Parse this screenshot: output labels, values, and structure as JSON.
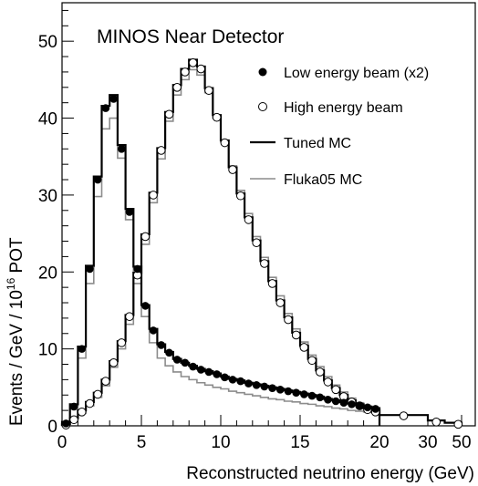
{
  "chart_data": {
    "type": "line",
    "annotation": "MINOS Near Detector",
    "xlabel": "Reconstructed neutrino energy (GeV)",
    "ylabel_main": "Events / GeV / 10",
    "ylabel_exp": "16",
    "ylabel_suffix": " POT",
    "xlim": [
      0,
      50
    ],
    "ylim": [
      0,
      55
    ],
    "x_scale": "linear from 0 to 20 GeV, compressed between 20 and 50 GeV",
    "grid": false,
    "legend_placement": "top-right",
    "x_ticks": [
      "0",
      "5",
      "10",
      "15",
      "20",
      "30",
      "50"
    ],
    "y_ticks": [
      "0",
      "10",
      "20",
      "30",
      "40",
      "50"
    ],
    "series": [
      {
        "name": "Low energy beam (x2)",
        "style": "filled circles",
        "color": "#000000",
        "x": [
          0.25,
          0.75,
          1.25,
          1.75,
          2.25,
          2.75,
          3.25,
          3.75,
          4.25,
          4.75,
          5.25,
          5.75,
          6.25,
          6.75,
          7.25,
          7.75,
          8.25,
          8.75,
          9.25,
          9.75,
          10.25,
          10.75,
          11.25,
          11.75,
          12.25,
          12.75,
          13.25,
          13.75,
          14.25,
          14.75,
          15.25,
          15.75,
          16.25,
          16.75,
          17.25,
          17.75,
          18.25,
          18.75,
          19.25,
          19.75
        ],
        "y": [
          0.3,
          2.5,
          10.0,
          20.4,
          32.0,
          41.3,
          42.5,
          36.0,
          27.8,
          20.4,
          15.6,
          12.4,
          10.5,
          9.5,
          8.6,
          8.2,
          7.7,
          7.3,
          7.0,
          6.7,
          6.3,
          6.0,
          5.8,
          5.5,
          5.3,
          5.1,
          4.9,
          4.7,
          4.5,
          4.3,
          4.1,
          3.9,
          3.7,
          3.4,
          3.2,
          3.0,
          2.8,
          2.6,
          2.4,
          2.2
        ]
      },
      {
        "name": "High energy beam",
        "style": "open circles",
        "color": "#000000",
        "x": [
          0.25,
          0.75,
          1.25,
          1.75,
          2.25,
          2.75,
          3.25,
          3.75,
          4.25,
          4.75,
          5.25,
          5.75,
          6.25,
          6.75,
          7.25,
          7.75,
          8.25,
          8.75,
          9.25,
          9.75,
          10.25,
          10.75,
          11.25,
          11.75,
          12.25,
          12.75,
          13.25,
          13.75,
          14.25,
          14.75,
          15.25,
          15.75,
          16.25,
          16.75,
          17.25,
          17.75,
          18.25,
          18.75,
          19.25,
          19.75,
          25,
          35,
          48
        ],
        "y": [
          0.1,
          0.8,
          1.8,
          2.9,
          4.1,
          5.8,
          8.2,
          10.8,
          14.2,
          19.6,
          24.6,
          30.0,
          35.8,
          40.5,
          44.0,
          46.0,
          47.2,
          46.4,
          43.6,
          40.1,
          36.8,
          33.3,
          29.9,
          26.8,
          23.8,
          21.1,
          18.5,
          16.0,
          13.8,
          11.8,
          10.2,
          8.5,
          7.0,
          5.7,
          4.7,
          3.8,
          3.1,
          2.6,
          2.1,
          1.8,
          1.3,
          0.5,
          0.2
        ]
      },
      {
        "name": "Tuned MC",
        "style": "black step line",
        "color": "#000000",
        "edges": [
          0,
          0.5,
          1,
          1.5,
          2,
          2.5,
          3,
          3.5,
          4,
          4.5,
          5,
          5.5,
          6,
          6.5,
          7,
          7.5,
          8,
          8.5,
          9,
          9.5,
          10,
          10.5,
          11,
          11.5,
          12,
          12.5,
          13,
          13.5,
          14,
          14.5,
          15,
          15.5,
          16,
          16.5,
          17,
          17.5,
          18,
          18.5,
          19,
          19.5,
          20
        ],
        "curves": [
          {
            "beam": "low energy",
            "values": [
              0.5,
              2.8,
              10.3,
              20.8,
              32.4,
              41.6,
              43.0,
              36.5,
              28.2,
              20.7,
              15.7,
              12.6,
              10.6,
              9.6,
              8.7,
              8.2,
              7.8,
              7.4,
              7.1,
              6.8,
              6.4,
              6.1,
              5.9,
              5.6,
              5.4,
              5.2,
              5.0,
              4.8,
              4.6,
              4.4,
              4.2,
              4.0,
              3.8,
              3.5,
              3.3,
              3.1,
              2.9,
              2.7,
              2.5,
              2.3
            ]
          },
          {
            "beam": "high energy",
            "values": [
              0.2,
              1.0,
              2.0,
              3.1,
              4.3,
              6.0,
              8.4,
              11.0,
              14.4,
              19.9,
              24.9,
              30.3,
              36.1,
              40.8,
              44.3,
              46.4,
              47.6,
              46.7,
              43.9,
              40.4,
              37.1,
              33.6,
              30.2,
              27.1,
              24.1,
              21.4,
              18.8,
              16.3,
              14.1,
              12.1,
              10.4,
              8.7,
              7.2,
              5.9,
              4.9,
              4.0,
              3.3,
              2.8,
              2.3,
              2.0
            ],
            "tail_x": [
              20,
              30,
              40,
              50
            ],
            "tail_values": [
              1.4,
              0.7,
              0.4
            ]
          }
        ]
      },
      {
        "name": "Fluka05 MC",
        "style": "gray step line",
        "color": "#8c8c8c",
        "edges": [
          0,
          0.5,
          1,
          1.5,
          2,
          2.5,
          3,
          3.5,
          4,
          4.5,
          5,
          5.5,
          6,
          6.5,
          7,
          7.5,
          8,
          8.5,
          9,
          9.5,
          10,
          10.5,
          11,
          11.5,
          12,
          12.5,
          13,
          13.5,
          14,
          14.5,
          15,
          15.5,
          16,
          16.5,
          17,
          17.5,
          18,
          18.5,
          19,
          19.5,
          20
        ],
        "curves": [
          {
            "beam": "low energy",
            "values": [
              0.4,
              2.2,
              8.8,
              18.5,
              29.8,
              38.6,
              40.0,
              34.8,
              26.8,
              19.2,
              14.2,
              10.8,
              8.8,
              7.8,
              7.0,
              6.4,
              6.0,
              5.6,
              5.3,
              5.0,
              4.8,
              4.5,
              4.3,
              4.1,
              3.9,
              3.7,
              3.5,
              3.4,
              3.2,
              3.1,
              2.9,
              2.8,
              2.6,
              2.5,
              2.3,
              2.2,
              2.0,
              1.9,
              1.8,
              1.7
            ]
          },
          {
            "beam": "high energy",
            "values": [
              0.1,
              0.7,
              1.6,
              2.6,
              3.7,
              5.2,
              7.6,
              10.0,
              13.2,
              18.5,
              23.6,
              29.0,
              34.7,
              39.6,
              43.0,
              45.0,
              46.3,
              45.6,
              43.3,
              40.0,
              36.9,
              33.8,
              30.6,
              27.6,
              24.6,
              21.9,
              19.3,
              16.9,
              14.6,
              12.6,
              10.9,
              9.2,
              7.7,
              6.4,
              5.3,
              4.4,
              3.6,
              3.0,
              2.5,
              2.1
            ]
          }
        ]
      }
    ]
  }
}
